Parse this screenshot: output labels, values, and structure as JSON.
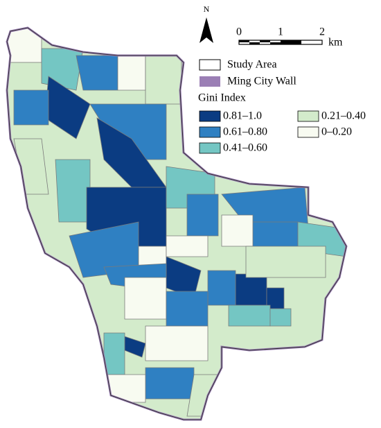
{
  "north": "N",
  "scale_bar": {
    "labels": [
      "0",
      "1",
      "2"
    ],
    "unit": "km"
  },
  "legend": {
    "study_area": "Study Area",
    "city_wall": "Ming City Wall",
    "title": "Gini Index",
    "classes": [
      {
        "label": "0.81–1.0",
        "color": "#0b3c82"
      },
      {
        "label": "0.61–0.80",
        "color": "#2f80c2"
      },
      {
        "label": "0.41–0.60",
        "color": "#74c6c3"
      },
      {
        "label": "0.21–0.40",
        "color": "#d3ebcb"
      },
      {
        "label": "0–0.20",
        "color": "#f8fbf1"
      }
    ]
  }
}
